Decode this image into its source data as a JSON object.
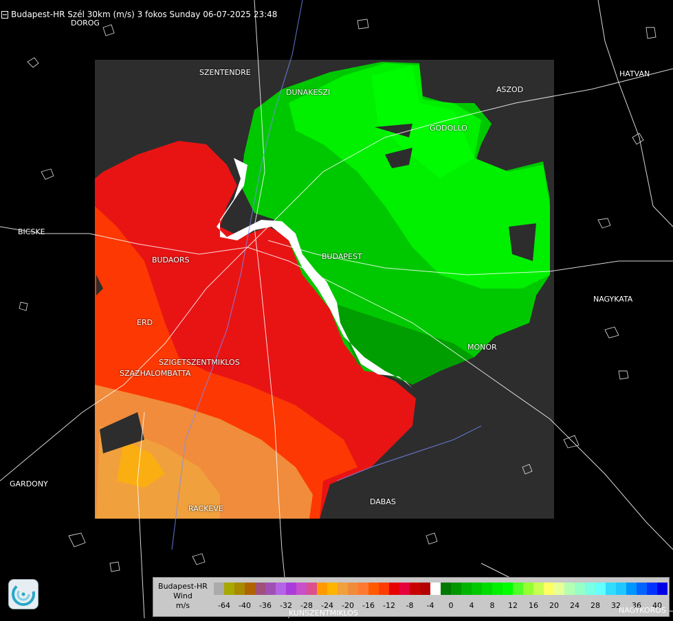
{
  "header": {
    "title": "Budapest-HR Szél 30km (m/s) 3 fokos Sunday 06-07-2025 23:48"
  },
  "cities": [
    {
      "name": "DOROG"
    },
    {
      "name": "SZENTENDRE"
    },
    {
      "name": "DUNAKESZI"
    },
    {
      "name": "HATVAN"
    },
    {
      "name": "ASZOD"
    },
    {
      "name": "GODOLLO"
    },
    {
      "name": "BICSKE"
    },
    {
      "name": "BUDAORS"
    },
    {
      "name": "BUDAPEST"
    },
    {
      "name": "NAGYKATA"
    },
    {
      "name": "ERD"
    },
    {
      "name": "MONOR"
    },
    {
      "name": "SZIGETSZENTMIKLOS"
    },
    {
      "name": "SZAZHALOMBATTA"
    },
    {
      "name": "GARDONY"
    },
    {
      "name": "RACKEVE"
    },
    {
      "name": "DABAS"
    },
    {
      "name": "KUNSZENTMIKLOS"
    },
    {
      "name": "NAGYKOROS"
    }
  ],
  "legend": {
    "title_lines": [
      "Budapest-HR",
      "Wind",
      "m/s"
    ],
    "colors": [
      "#ababab",
      "#a8a800",
      "#a88a00",
      "#b06400",
      "#a0507a",
      "#a050b4",
      "#b464e6",
      "#aa3cdc",
      "#c850c8",
      "#dc508c",
      "#ff9b00",
      "#ffb400",
      "#f0a03c",
      "#f08c3c",
      "#ff7832",
      "#ff5a00",
      "#ff3c00",
      "#e60000",
      "#e6003c",
      "#c80000",
      "#b40000",
      "#ffffff",
      "#007800",
      "#009600",
      "#00b400",
      "#00c800",
      "#00dc00",
      "#00f000",
      "#00ff00",
      "#50ff28",
      "#96ff32",
      "#c8ff50",
      "#ffff64",
      "#e6ff96",
      "#b4ffb4",
      "#96ffc8",
      "#78ffe6",
      "#64ffff",
      "#32dcff",
      "#1ec8ff",
      "#0096ff",
      "#0064ff",
      "#0032ff",
      "#0000e6"
    ],
    "ticks": [
      "-64",
      "-40",
      "-36",
      "-32",
      "-28",
      "-24",
      "-20",
      "-16",
      "-12",
      "-8",
      "-4",
      "0",
      "4",
      "8",
      "12",
      "16",
      "20",
      "24",
      "28",
      "32",
      "36",
      "40"
    ]
  },
  "icons": {
    "logo": "weather-service-swirl-icon",
    "header": "window-icon"
  }
}
